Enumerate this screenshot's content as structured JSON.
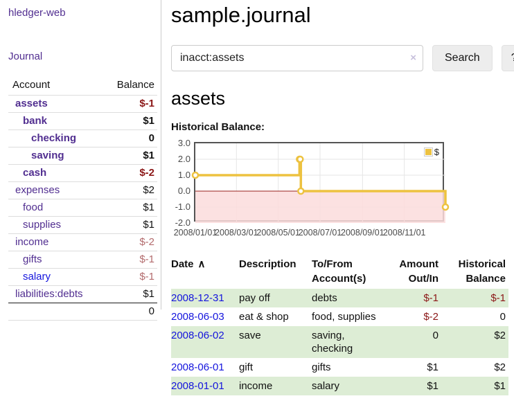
{
  "app": {
    "title": "hledger-web",
    "nav_journal_label": "Journal"
  },
  "colors": {
    "link_purple": "#512e90",
    "link_blue": "#1414dd",
    "negative_strong": "#8b1717",
    "negative_muted": "#b36b6d",
    "row_shade_green": "#ddedd5",
    "series_gold": "#EDC240"
  },
  "sidebar": {
    "header": {
      "account": "Account",
      "balance": "Balance"
    },
    "accounts": [
      {
        "name": "assets",
        "balance": "$-1",
        "depth": 1,
        "bold": true,
        "neg": "strong",
        "blue": false
      },
      {
        "name": "bank",
        "balance": "$1",
        "depth": 2,
        "bold": true,
        "neg": "",
        "blue": false
      },
      {
        "name": "checking",
        "balance": "0",
        "depth": 3,
        "bold": true,
        "neg": "",
        "blue": false
      },
      {
        "name": "saving",
        "balance": "$1",
        "depth": 3,
        "bold": true,
        "neg": "",
        "blue": false
      },
      {
        "name": "cash",
        "balance": "$-2",
        "depth": 2,
        "bold": true,
        "neg": "strong",
        "blue": false
      },
      {
        "name": "expenses",
        "balance": "$2",
        "depth": 1,
        "bold": false,
        "neg": "",
        "blue": false
      },
      {
        "name": "food",
        "balance": "$1",
        "depth": 2,
        "bold": false,
        "neg": "",
        "blue": false
      },
      {
        "name": "supplies",
        "balance": "$1",
        "depth": 2,
        "bold": false,
        "neg": "",
        "blue": false
      },
      {
        "name": "income",
        "balance": "$-2",
        "depth": 1,
        "bold": false,
        "neg": "muted",
        "blue": false
      },
      {
        "name": "gifts",
        "balance": "$-1",
        "depth": 2,
        "bold": false,
        "neg": "muted",
        "blue": false
      },
      {
        "name": "salary",
        "balance": "$-1",
        "depth": 2,
        "bold": false,
        "neg": "muted",
        "blue": true
      },
      {
        "name": "liabilities:debts",
        "balance": "$1",
        "depth": 1,
        "bold": false,
        "neg": "",
        "blue": false
      }
    ],
    "total": "0"
  },
  "header": {
    "title": "sample.journal"
  },
  "search": {
    "value": "inacct:assets",
    "clear_icon": "×",
    "button_label": "Search",
    "help_label": "?"
  },
  "account_page": {
    "heading": "assets",
    "chart_caption": "Historical Balance:"
  },
  "chart_data": {
    "type": "line",
    "title": "Historical Balance",
    "legend": {
      "label": "$",
      "position": "top-right"
    },
    "series": [
      {
        "name": "$",
        "color": "#EDC240",
        "steps": true,
        "points": [
          {
            "date": "2008-01-01",
            "day": 0,
            "value": 1
          },
          {
            "date": "2008-06-01",
            "day": 152,
            "value": 2
          },
          {
            "date": "2008-06-02",
            "day": 153,
            "value": 2
          },
          {
            "date": "2008-06-03",
            "day": 154,
            "value": 0
          },
          {
            "date": "2008-12-31",
            "day": 365,
            "value": -1
          }
        ]
      }
    ],
    "x_ticks": [
      {
        "label": "2008/01/01",
        "day": 0
      },
      {
        "label": "2008/03/01",
        "day": 60
      },
      {
        "label": "2008/05/01",
        "day": 121
      },
      {
        "label": "2008/07/01",
        "day": 182
      },
      {
        "label": "2008/09/01",
        "day": 244
      },
      {
        "label": "2008/11/01",
        "day": 305
      }
    ],
    "x_range_days": 365,
    "y_ticks": [
      3,
      2,
      1,
      0,
      -1,
      -2
    ],
    "ylim": [
      -2,
      3
    ],
    "grid": true,
    "chart_colors": {
      "grid": "#e6e6e6",
      "border": "#545454",
      "zero_line": "#99201c",
      "negative_fill": "#fcdcdc",
      "marker_fill": "#ffffff"
    }
  },
  "register": {
    "columns": [
      {
        "line1": "Date",
        "line2": "",
        "align": "left",
        "sort_icon": "∧"
      },
      {
        "line1": "Description",
        "line2": "",
        "align": "left"
      },
      {
        "line1": "To/From",
        "line2": "Account(s)",
        "align": "left"
      },
      {
        "line1": "Amount",
        "line2": "Out/In",
        "align": "right"
      },
      {
        "line1": "Historical",
        "line2": "Balance",
        "align": "right"
      }
    ],
    "rows": [
      {
        "date": "2008-12-31",
        "description": "pay off",
        "accounts": "debts",
        "amount": "$-1",
        "amount_neg": true,
        "balance": "$-1",
        "balance_neg": true,
        "shaded": true
      },
      {
        "date": "2008-06-03",
        "description": "eat & shop",
        "accounts": "food, supplies",
        "amount": "$-2",
        "amount_neg": true,
        "balance": "0",
        "balance_neg": false,
        "shaded": false
      },
      {
        "date": "2008-06-02",
        "description": "save",
        "accounts": "saving, checking",
        "amount": "0",
        "amount_neg": false,
        "balance": "$2",
        "balance_neg": false,
        "shaded": true
      },
      {
        "date": "2008-06-01",
        "description": "gift",
        "accounts": "gifts",
        "amount": "$1",
        "amount_neg": false,
        "balance": "$2",
        "balance_neg": false,
        "shaded": false
      },
      {
        "date": "2008-01-01",
        "description": "income",
        "accounts": "salary",
        "amount": "$1",
        "amount_neg": false,
        "balance": "$1",
        "balance_neg": false,
        "shaded": true
      }
    ]
  }
}
